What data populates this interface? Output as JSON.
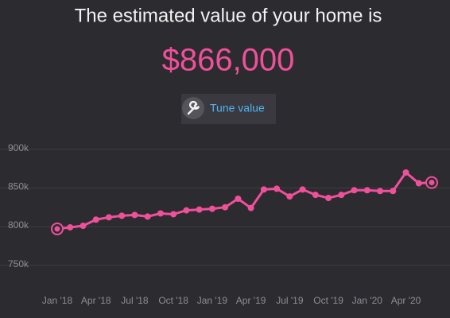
{
  "header": {
    "title": "The estimated value of your home is",
    "value": "$866,000",
    "button": "Tune value"
  },
  "chart_data": {
    "type": "line",
    "categories": [
      "Jan '18",
      null,
      null,
      "Apr '18",
      null,
      null,
      "Jul '18",
      null,
      null,
      "Oct '18",
      null,
      null,
      "Jan '19",
      null,
      null,
      "Apr '19",
      null,
      null,
      "Jul '19",
      null,
      null,
      "Oct '19",
      null,
      null,
      "Jan '20",
      null,
      null,
      "Apr '20",
      null,
      null
    ],
    "values": [
      797000,
      799000,
      801000,
      809000,
      812000,
      814000,
      815000,
      813000,
      817000,
      816000,
      821000,
      822000,
      823000,
      825000,
      836000,
      824000,
      848000,
      849000,
      839000,
      848000,
      841000,
      837000,
      841000,
      847000,
      847000,
      846000,
      846000,
      870000,
      856000,
      857000
    ],
    "color": "#f0509a",
    "ylim": [
      728000,
      908000
    ],
    "yticks": [
      {
        "value": 750000,
        "label": "750k"
      },
      {
        "value": 800000,
        "label": "800k"
      },
      {
        "value": 850000,
        "label": "850k"
      },
      {
        "value": 900000,
        "label": "900k"
      }
    ],
    "grid": true
  }
}
